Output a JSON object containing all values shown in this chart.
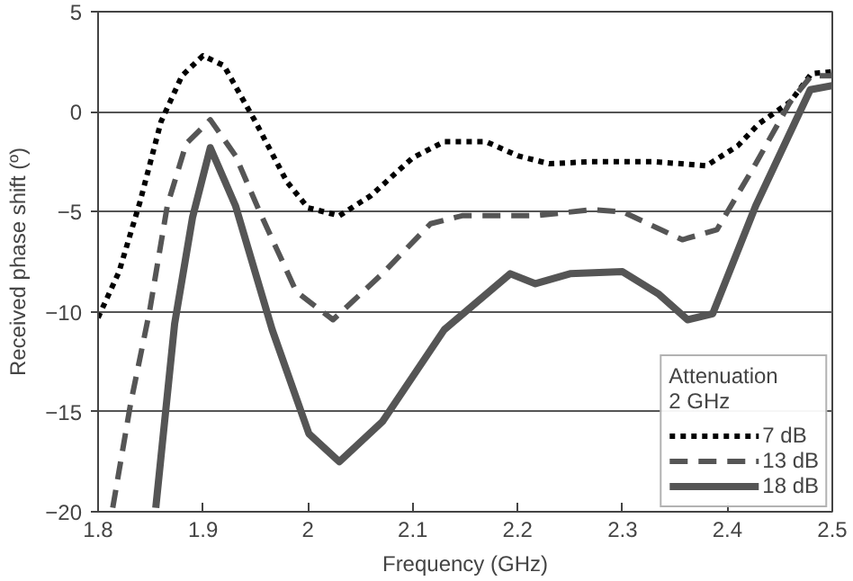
{
  "chart_data": {
    "type": "line",
    "xlabel": "Frequency (GHz)",
    "ylabel": "Received phase shift (º)",
    "legend_title": "Attenuation\n2 GHz",
    "legend": "bottom right",
    "grid": "y",
    "xlim": [
      1.8,
      2.5
    ],
    "ylim": [
      -20,
      5
    ],
    "xticks": [
      1.8,
      1.9,
      2,
      2.1,
      2.2,
      2.3,
      2.4,
      2.5
    ],
    "yticks": [
      -20,
      -15,
      -10,
      -5,
      0,
      5
    ],
    "series": [
      {
        "name": "7 dB",
        "color": "#000000",
        "line_style": "dotted",
        "x": [
          1.8,
          1.82,
          1.84,
          1.86,
          1.88,
          1.9,
          1.92,
          1.95,
          1.98,
          2.0,
          2.03,
          2.06,
          2.1,
          2.13,
          2.17,
          2.2,
          2.23,
          2.27,
          2.3,
          2.33,
          2.38,
          2.41,
          2.43,
          2.46,
          2.48,
          2.5
        ],
        "values": [
          -10.3,
          -8,
          -4.5,
          -0.5,
          1.8,
          2.8,
          2.3,
          -0.5,
          -3.5,
          -4.8,
          -5.2,
          -4.2,
          -2.3,
          -1.5,
          -1.5,
          -2.2,
          -2.6,
          -2.5,
          -2.5,
          -2.5,
          -2.7,
          -1.7,
          -0.6,
          0.5,
          1.9,
          2.0
        ]
      },
      {
        "name": "13 dB",
        "color": "#555555",
        "line_style": "dashed",
        "x": [
          1.814,
          1.831,
          1.849,
          1.866,
          1.884,
          1.907,
          1.931,
          1.954,
          1.989,
          2.024,
          2.071,
          2.117,
          2.147,
          2.217,
          2.27,
          2.3,
          2.357,
          2.39,
          2.427,
          2.46,
          2.48,
          2.5
        ],
        "values": [
          -19.8,
          -14.6,
          -10,
          -4.7,
          -1.6,
          -0.4,
          -2.2,
          -5,
          -9,
          -10.4,
          -8.1,
          -5.6,
          -5.2,
          -5.2,
          -4.9,
          -5,
          -6.4,
          -5.9,
          -2.6,
          0.5,
          1.8,
          1.8
        ]
      },
      {
        "name": "18 dB",
        "color": "#555555",
        "line_style": "solid",
        "x": [
          1.855,
          1.873,
          1.89,
          1.907,
          1.931,
          1.966,
          2.001,
          2.03,
          2.071,
          2.13,
          2.193,
          2.217,
          2.25,
          2.3,
          2.334,
          2.362,
          2.386,
          2.427,
          2.479,
          2.5
        ],
        "values": [
          -19.8,
          -10.6,
          -5.3,
          -1.8,
          -4.7,
          -10.9,
          -16.1,
          -17.5,
          -15.5,
          -10.9,
          -8.1,
          -8.6,
          -8.1,
          -8,
          -9.1,
          -10.4,
          -10.1,
          -4.7,
          1.1,
          1.3
        ]
      }
    ]
  }
}
